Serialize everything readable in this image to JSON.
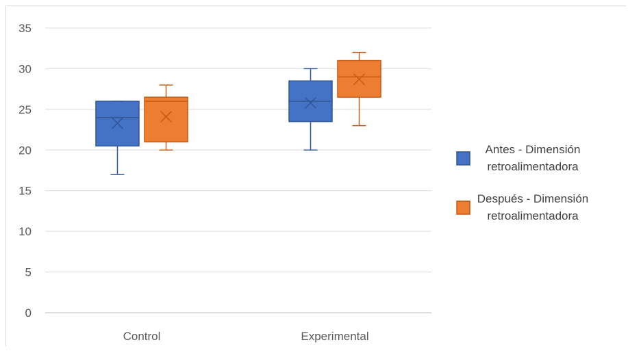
{
  "chart_data": {
    "type": "boxplot",
    "title": "",
    "xlabel": "",
    "ylabel": "",
    "ylim": [
      0,
      35
    ],
    "yticks": [
      0,
      5,
      10,
      15,
      20,
      25,
      30,
      35
    ],
    "grid": true,
    "legend_position": "right",
    "categories": [
      "Control",
      "Experimental"
    ],
    "series": [
      {
        "name": "Antes - Dimensión retroalimentadora",
        "name_lines": [
          "Antes - Dimensión",
          "retroalimentadora"
        ],
        "color": "#4472C4",
        "stroke": "#2F5597",
        "boxes": [
          {
            "min": 17,
            "q1": 20.5,
            "median": 24,
            "q3": 26,
            "max": 26,
            "mean": 23.3
          },
          {
            "min": 20,
            "q1": 23.5,
            "median": 26,
            "q3": 28.5,
            "max": 30,
            "mean": 25.8
          }
        ]
      },
      {
        "name": "Después - Dimensión retroalimentadora",
        "name_lines": [
          "Después - Dimensión",
          "retroalimentadora"
        ],
        "color": "#ED7D31",
        "stroke": "#C55A11",
        "boxes": [
          {
            "min": 20,
            "q1": 21,
            "median": 26,
            "q3": 26.5,
            "max": 28,
            "mean": 24.1
          },
          {
            "min": 23,
            "q1": 26.5,
            "median": 29,
            "q3": 31,
            "max": 32,
            "mean": 28.7
          }
        ]
      }
    ]
  }
}
